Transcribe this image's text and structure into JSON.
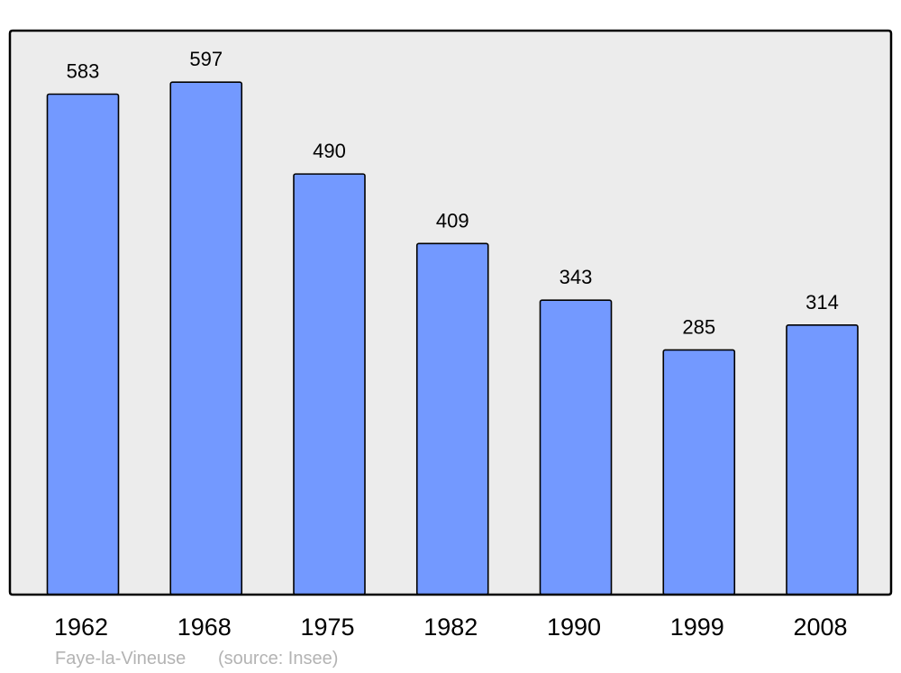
{
  "chart_data": {
    "type": "bar",
    "categories": [
      "1962",
      "1968",
      "1975",
      "1982",
      "1990",
      "1999",
      "2008"
    ],
    "values": [
      583,
      597,
      490,
      409,
      343,
      285,
      314
    ],
    "title": "",
    "xlabel": "",
    "ylabel": "",
    "ylim": [
      0,
      657
    ],
    "grid": false,
    "data_labels": true,
    "colors": {
      "bar": "#7399ff",
      "plot_background": "#ececec",
      "frame": "#000000",
      "caption": "#b3b3b3"
    }
  },
  "caption": {
    "place": "Faye-la-Vineuse",
    "source": "(source: Insee)"
  }
}
